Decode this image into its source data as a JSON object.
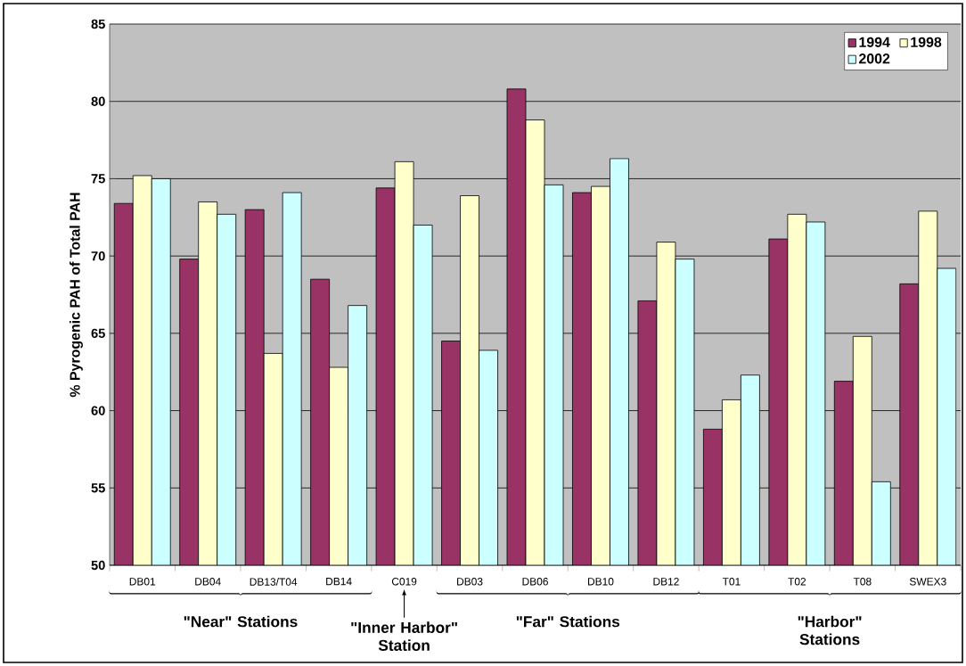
{
  "chart_data": {
    "type": "bar",
    "ylabel": "% Pyrogenic PAH of Total PAH",
    "categories": [
      "DB01",
      "DB04",
      "DB13/T04",
      "DB14",
      "C019",
      "DB03",
      "DB06",
      "DB10",
      "DB12",
      "T01",
      "T02",
      "T08",
      "SWEX3"
    ],
    "series": [
      {
        "name": "1994",
        "color": "#993366",
        "values": [
          73.4,
          69.8,
          73.0,
          68.5,
          74.4,
          64.5,
          80.8,
          74.1,
          67.1,
          58.8,
          71.1,
          61.9,
          68.2
        ]
      },
      {
        "name": "1998",
        "color": "#ffffcc",
        "values": [
          75.2,
          73.5,
          63.7,
          62.8,
          76.1,
          73.9,
          78.8,
          74.5,
          70.9,
          60.7,
          72.7,
          64.8,
          72.9
        ]
      },
      {
        "name": "2002",
        "color": "#ccffff",
        "values": [
          75.0,
          72.7,
          74.1,
          66.8,
          72.0,
          63.9,
          74.6,
          76.3,
          69.8,
          62.3,
          72.2,
          55.4,
          69.2
        ]
      }
    ],
    "ylim": [
      50,
      85
    ],
    "yticks": [
      50,
      55,
      60,
      65,
      70,
      75,
      80,
      85
    ],
    "grid": "y",
    "legend": "top right",
    "annotations": [
      "\"Near\" Stations",
      "\"Inner Harbor\" Station",
      "\"Far\" Stations",
      "\"Harbor\" Stations"
    ]
  }
}
